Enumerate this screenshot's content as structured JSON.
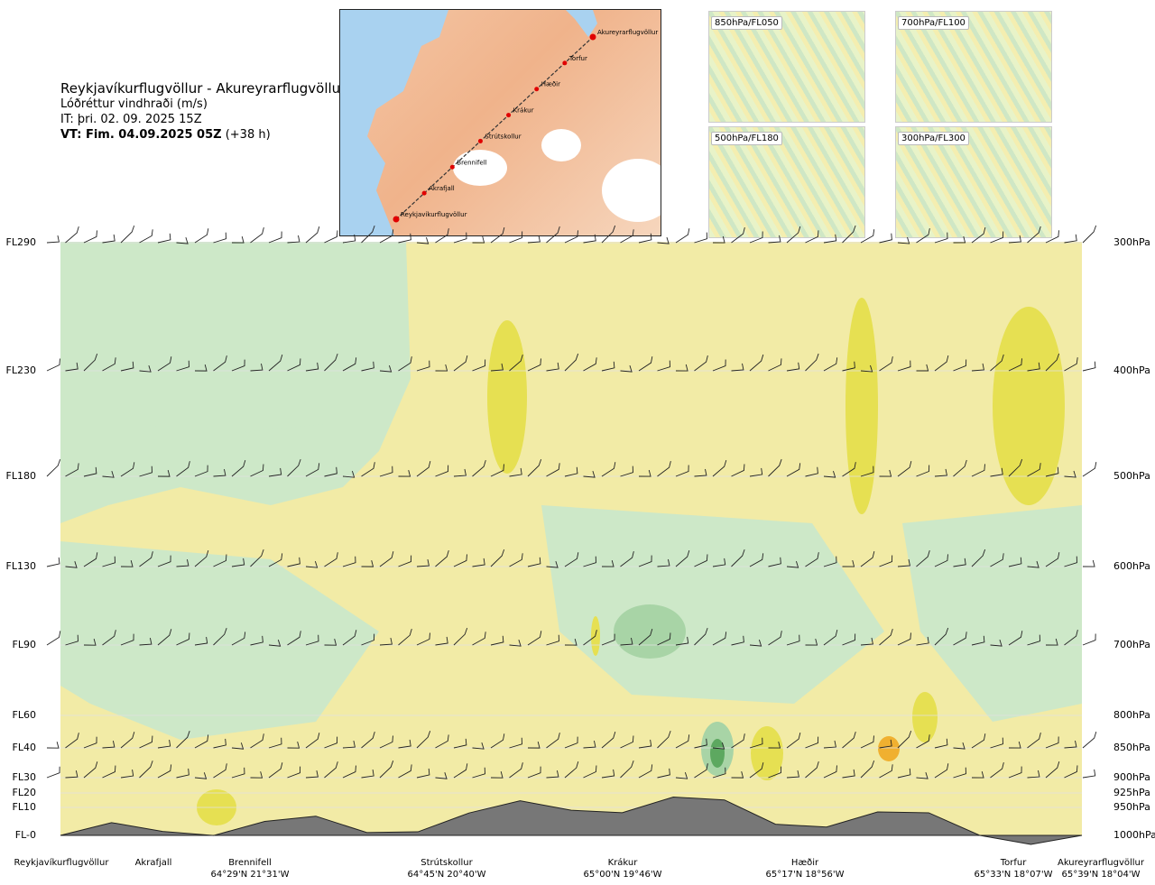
{
  "header": {
    "title": "Reykjavíkurflugvöllur - Akureyrarflugvöllur",
    "subtitle": "Lóðréttur vindhraði (m/s)",
    "it": "IT: þri. 02. 09. 2025 15Z",
    "vt": "VT: Fim. 04.09.2025 05Z",
    "vt_offset": "(+38 h)"
  },
  "map": {
    "waypoints": [
      "Akureyrarflugvöllur",
      "Torfur",
      "Hæðir",
      "Krákur",
      "Strútskollur",
      "Brennifell",
      "Akrafjall",
      "Reykjavíkurflugvöllur"
    ],
    "colors": {
      "land": "#f2bf9c",
      "sea": "#a9d2f0",
      "glacier": "#ffffff",
      "route": "#333333",
      "point": "#e00000"
    }
  },
  "insets": [
    {
      "label": "850hPa/FL050"
    },
    {
      "label": "700hPa/FL100"
    },
    {
      "label": "500hPa/FL180"
    },
    {
      "label": "300hPa/FL300"
    }
  ],
  "axis": {
    "left": [
      "FL290",
      "FL230",
      "FL180",
      "FL130",
      "FL90",
      "FL60",
      "FL40",
      "FL30",
      "FL20",
      "FL10",
      "FL-0"
    ],
    "right": [
      "300hPa",
      "400hPa",
      "500hPa",
      "600hPa",
      "700hPa",
      "800hPa",
      "850hPa",
      "900hPa",
      "925hPa",
      "950hPa",
      "1000hPa"
    ]
  },
  "locations": [
    {
      "name": "Reykjavíkurflugvöllur",
      "coord": ""
    },
    {
      "name": "Akrafjall",
      "coord": ""
    },
    {
      "name": "Brennifell",
      "coord": "64°29'N 21°31'W"
    },
    {
      "name": "Strútskollur",
      "coord": "64°45'N 20°40'W"
    },
    {
      "name": "Krákur",
      "coord": "65°00'N 19°46'W"
    },
    {
      "name": "Hæðir",
      "coord": "65°17'N 18°56'W"
    },
    {
      "name": "Torfur",
      "coord": "65°33'N 18°07'W"
    },
    {
      "name": "Akureyrarflugvöllur",
      "coord": "65°39'N 18°04'W"
    }
  ],
  "chart_data": {
    "type": "heatmap",
    "title": "Reykjavíkurflugvöllur - Akureyrarflugvöllur",
    "quantity": "Lóðréttur vindhraði (m/s)",
    "y_levels_hpa": [
      300,
      400,
      500,
      600,
      700,
      800,
      850,
      900,
      925,
      950,
      1000
    ],
    "y_levels_fl": [
      "FL290",
      "FL230",
      "FL180",
      "FL130",
      "FL90",
      "FL60",
      "FL40",
      "FL30",
      "FL20",
      "FL10",
      "FL-0"
    ],
    "x_route_fraction": [
      0.0,
      0.1,
      0.2,
      0.3,
      0.4,
      0.5,
      0.6,
      0.7,
      0.8,
      0.9,
      1.0
    ],
    "terrain_elevation_hpa": [
      1000,
      993,
      975,
      995,
      960,
      955,
      932,
      980,
      958,
      1000,
      1000
    ],
    "colors": {
      "updraft_weak": "#f2eba6",
      "updraft_mod": "#e6e052",
      "updraft_strong": "#f0b030",
      "downdraft_weak": "#cde8c8",
      "downdraft_mod": "#a8d4a6",
      "downdraft_strong": "#5da860",
      "neutral": "#f4f9e8",
      "terrain": "#777777"
    },
    "grid": true
  }
}
